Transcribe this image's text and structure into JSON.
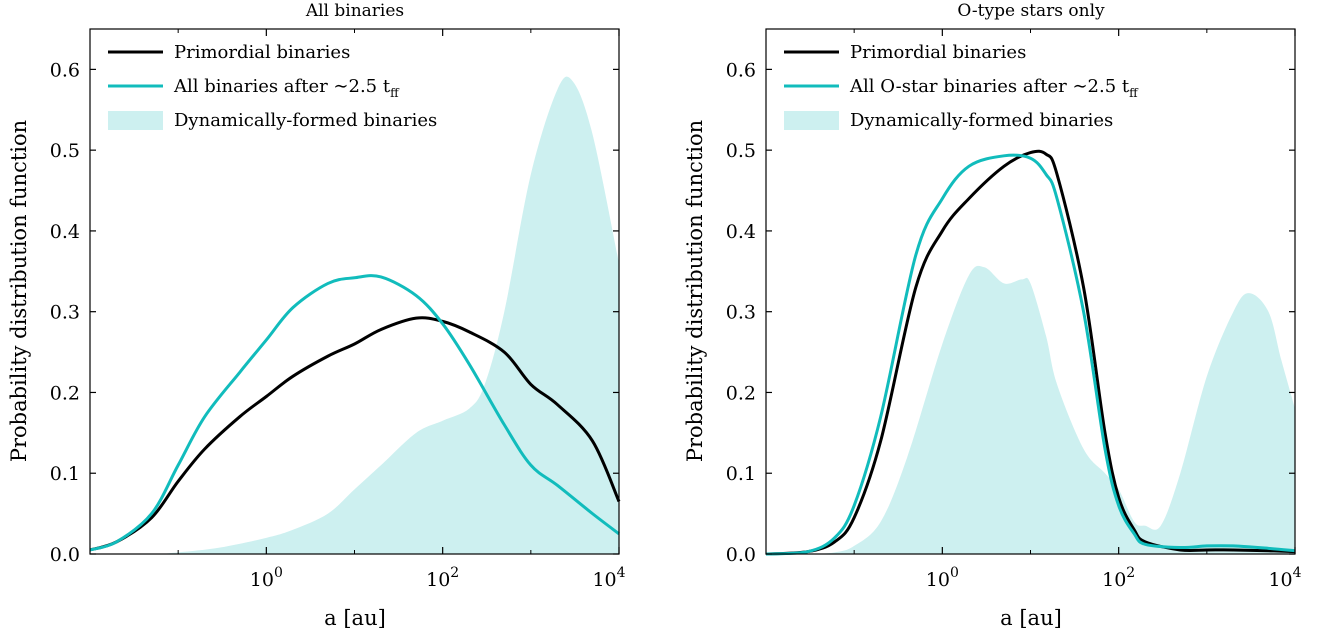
{
  "colors": {
    "primordial": "#000000",
    "after": "#11bcbc",
    "dynamic_fill": "#cdf0f0"
  },
  "chart_data": [
    {
      "type": "line",
      "title": "All binaries",
      "xlabel": "a [au]",
      "ylabel": "Probability distribution function",
      "xscale": "log",
      "xlim": [
        0.01,
        10000
      ],
      "ylim": [
        0,
        0.65
      ],
      "xtick_labels": [
        "10^0",
        "10^2",
        "10^4"
      ],
      "ytick_labels": [
        "0.0",
        "0.1",
        "0.2",
        "0.3",
        "0.4",
        "0.5",
        "0.6"
      ],
      "grid": false,
      "legend_position": "top-left",
      "series": [
        {
          "name": "Primordial binaries",
          "kind": "line",
          "x": [
            0.01,
            0.02,
            0.05,
            0.1,
            0.2,
            0.5,
            1,
            2,
            5,
            10,
            20,
            50,
            100,
            200,
            500,
            1000,
            2000,
            5000,
            10000
          ],
          "y": [
            0.005,
            0.015,
            0.045,
            0.09,
            0.13,
            0.17,
            0.195,
            0.22,
            0.245,
            0.26,
            0.278,
            0.292,
            0.288,
            0.275,
            0.25,
            0.21,
            0.185,
            0.14,
            0.065
          ]
        },
        {
          "name": "All binaries after ~2.5 t_ff",
          "kind": "line",
          "x": [
            0.01,
            0.02,
            0.05,
            0.1,
            0.2,
            0.5,
            1,
            2,
            5,
            10,
            20,
            50,
            100,
            200,
            500,
            1000,
            2000,
            5000,
            10000
          ],
          "y": [
            0.005,
            0.015,
            0.05,
            0.11,
            0.17,
            0.225,
            0.265,
            0.305,
            0.335,
            0.342,
            0.343,
            0.32,
            0.285,
            0.235,
            0.16,
            0.11,
            0.085,
            0.05,
            0.025
          ]
        },
        {
          "name": "Dynamically-formed binaries",
          "kind": "area",
          "x": [
            0.01,
            0.05,
            0.1,
            0.3,
            1,
            2,
            5,
            10,
            20,
            50,
            100,
            200,
            300,
            500,
            1000,
            2000,
            3000,
            5000,
            10000
          ],
          "y": [
            0.0,
            0.0,
            0.002,
            0.008,
            0.02,
            0.03,
            0.05,
            0.08,
            0.11,
            0.15,
            0.165,
            0.18,
            0.21,
            0.3,
            0.47,
            0.575,
            0.585,
            0.52,
            0.36
          ]
        }
      ]
    },
    {
      "type": "line",
      "title": "O-type stars only",
      "xlabel": "a [au]",
      "ylabel": "Probability distribution function",
      "xscale": "log",
      "xlim": [
        0.01,
        10000
      ],
      "ylim": [
        0,
        0.65
      ],
      "xtick_labels": [
        "10^0",
        "10^2",
        "10^4"
      ],
      "ytick_labels": [
        "0.0",
        "0.1",
        "0.2",
        "0.3",
        "0.4",
        "0.5",
        "0.6"
      ],
      "grid": false,
      "legend_position": "top-left",
      "series": [
        {
          "name": "Primordial binaries",
          "kind": "line",
          "x": [
            0.01,
            0.03,
            0.06,
            0.1,
            0.2,
            0.5,
            1,
            2,
            5,
            10,
            15,
            20,
            40,
            70,
            100,
            150,
            200,
            500,
            1000,
            2000,
            5000,
            10000
          ],
          "y": [
            0.0,
            0.003,
            0.015,
            0.045,
            0.14,
            0.33,
            0.4,
            0.44,
            0.48,
            0.497,
            0.495,
            0.47,
            0.33,
            0.15,
            0.07,
            0.03,
            0.015,
            0.005,
            0.005,
            0.005,
            0.004,
            0.003
          ]
        },
        {
          "name": "All O-star binaries after ~2.5 t_ff",
          "kind": "line",
          "x": [
            0.01,
            0.03,
            0.06,
            0.1,
            0.2,
            0.5,
            1,
            2,
            5,
            10,
            15,
            20,
            40,
            70,
            100,
            150,
            200,
            500,
            1000,
            2000,
            5000,
            10000
          ],
          "y": [
            0.0,
            0.003,
            0.02,
            0.06,
            0.17,
            0.37,
            0.44,
            0.48,
            0.493,
            0.49,
            0.47,
            0.44,
            0.3,
            0.13,
            0.06,
            0.025,
            0.012,
            0.008,
            0.01,
            0.01,
            0.007,
            0.004
          ]
        },
        {
          "name": "Dynamically-formed binaries",
          "kind": "area",
          "x": [
            0.01,
            0.03,
            0.06,
            0.1,
            0.2,
            0.4,
            1,
            2,
            3,
            5,
            8,
            10,
            15,
            20,
            40,
            70,
            100,
            150,
            200,
            300,
            500,
            1000,
            2000,
            3000,
            5000,
            7000,
            10000
          ],
          "y": [
            0.0,
            0.0,
            0.002,
            0.01,
            0.04,
            0.12,
            0.26,
            0.345,
            0.355,
            0.335,
            0.34,
            0.335,
            0.27,
            0.21,
            0.13,
            0.1,
            0.08,
            0.04,
            0.035,
            0.035,
            0.1,
            0.22,
            0.3,
            0.323,
            0.3,
            0.24,
            0.18
          ]
        }
      ]
    }
  ]
}
